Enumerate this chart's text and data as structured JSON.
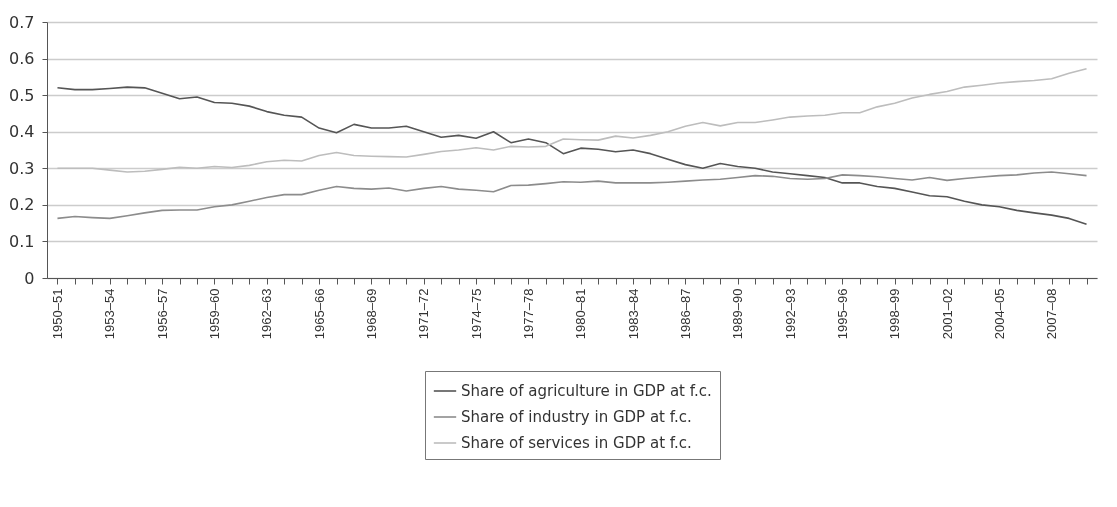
{
  "chart_data": {
    "type": "line",
    "categories": [
      "1950–51",
      null,
      null,
      "1953–54",
      null,
      null,
      "1956–57",
      null,
      null,
      "1959–60",
      null,
      null,
      "1962–63",
      null,
      null,
      "1965–66",
      null,
      null,
      "1968–69",
      null,
      null,
      "1971–72",
      null,
      null,
      "1974–75",
      null,
      null,
      "1977–78",
      null,
      null,
      "1980–81",
      null,
      null,
      "1983–84",
      null,
      null,
      "1986–87",
      null,
      null,
      "1989–90",
      null,
      null,
      "1992–93",
      null,
      null,
      "1995–96",
      null,
      null,
      "1998–99",
      null,
      null,
      "2001–02",
      null,
      null,
      "2004–05",
      null,
      null,
      "2007–08",
      null,
      null
    ],
    "series": [
      {
        "name": "Share of agriculture in GDP at f.c.",
        "color": "#555555",
        "values": [
          0.52,
          0.515,
          0.515,
          0.518,
          0.522,
          0.52,
          0.505,
          0.49,
          0.495,
          0.48,
          0.478,
          0.47,
          0.455,
          0.445,
          0.44,
          0.41,
          0.397,
          0.42,
          0.41,
          0.41,
          0.415,
          0.4,
          0.385,
          0.39,
          0.382,
          0.4,
          0.37,
          0.38,
          0.37,
          0.34,
          0.355,
          0.352,
          0.345,
          0.35,
          0.34,
          0.325,
          0.31,
          0.3,
          0.313,
          0.305,
          0.3,
          0.29,
          0.285,
          0.28,
          0.275,
          0.26,
          0.26,
          0.25,
          0.245,
          0.235,
          0.225,
          0.222,
          0.21,
          0.2,
          0.195,
          0.185,
          0.178,
          0.172,
          0.163,
          0.147
        ]
      },
      {
        "name": "Share of industry in GDP at f.c.",
        "color": "#8c8c8c",
        "values": [
          0.163,
          0.168,
          0.165,
          0.163,
          0.17,
          0.178,
          0.185,
          0.186,
          0.186,
          0.195,
          0.2,
          0.21,
          0.22,
          0.228,
          0.228,
          0.24,
          0.25,
          0.245,
          0.243,
          0.246,
          0.238,
          0.245,
          0.25,
          0.243,
          0.24,
          0.236,
          0.253,
          0.254,
          0.258,
          0.263,
          0.262,
          0.265,
          0.26,
          0.26,
          0.26,
          0.262,
          0.265,
          0.268,
          0.27,
          0.275,
          0.28,
          0.278,
          0.272,
          0.27,
          0.272,
          0.282,
          0.28,
          0.277,
          0.272,
          0.268,
          0.275,
          0.267,
          0.272,
          0.276,
          0.28,
          0.282,
          0.287,
          0.29,
          0.285,
          0.28
        ]
      },
      {
        "name": "Share of services in GDP at f.c.",
        "color": "#bdbdbd",
        "values": [
          0.3,
          0.3,
          0.3,
          0.295,
          0.29,
          0.292,
          0.297,
          0.303,
          0.3,
          0.305,
          0.302,
          0.308,
          0.318,
          0.322,
          0.32,
          0.335,
          0.343,
          0.335,
          0.333,
          0.332,
          0.331,
          0.338,
          0.346,
          0.35,
          0.356,
          0.35,
          0.36,
          0.358,
          0.36,
          0.38,
          0.378,
          0.377,
          0.388,
          0.383,
          0.39,
          0.4,
          0.415,
          0.425,
          0.416,
          0.425,
          0.425,
          0.432,
          0.44,
          0.443,
          0.445,
          0.452,
          0.452,
          0.468,
          0.478,
          0.492,
          0.502,
          0.51,
          0.522,
          0.527,
          0.533,
          0.537,
          0.54,
          0.545,
          0.56,
          0.572
        ]
      }
    ],
    "ylim": [
      0,
      0.7
    ],
    "yticks": [
      0,
      0.1,
      0.2,
      0.3,
      0.4,
      0.5,
      0.6,
      0.7
    ],
    "grid": "y",
    "legend": "bottom",
    "marker": "none",
    "line_style": "solid"
  }
}
